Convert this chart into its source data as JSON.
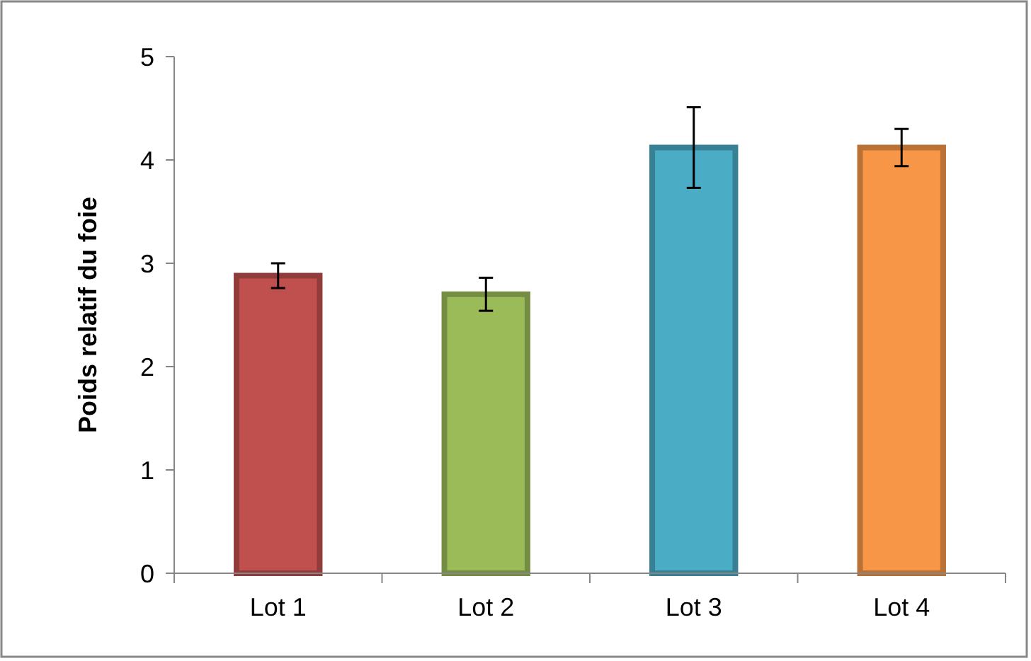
{
  "chart_data": {
    "type": "bar",
    "ylabel": "Poids relatif du foie",
    "categories": [
      "Lot 1",
      "Lot 2",
      "Lot 3",
      "Lot 4"
    ],
    "values": [
      2.88,
      2.7,
      4.12,
      4.12
    ],
    "errors": [
      0.12,
      0.16,
      0.39,
      0.18
    ],
    "colors": [
      "#c0504d",
      "#9bbb59",
      "#4bacc6",
      "#f79646"
    ],
    "ylim": [
      0,
      5
    ],
    "yticks": [
      0,
      1,
      2,
      3,
      4,
      5
    ],
    "grid": false
  }
}
